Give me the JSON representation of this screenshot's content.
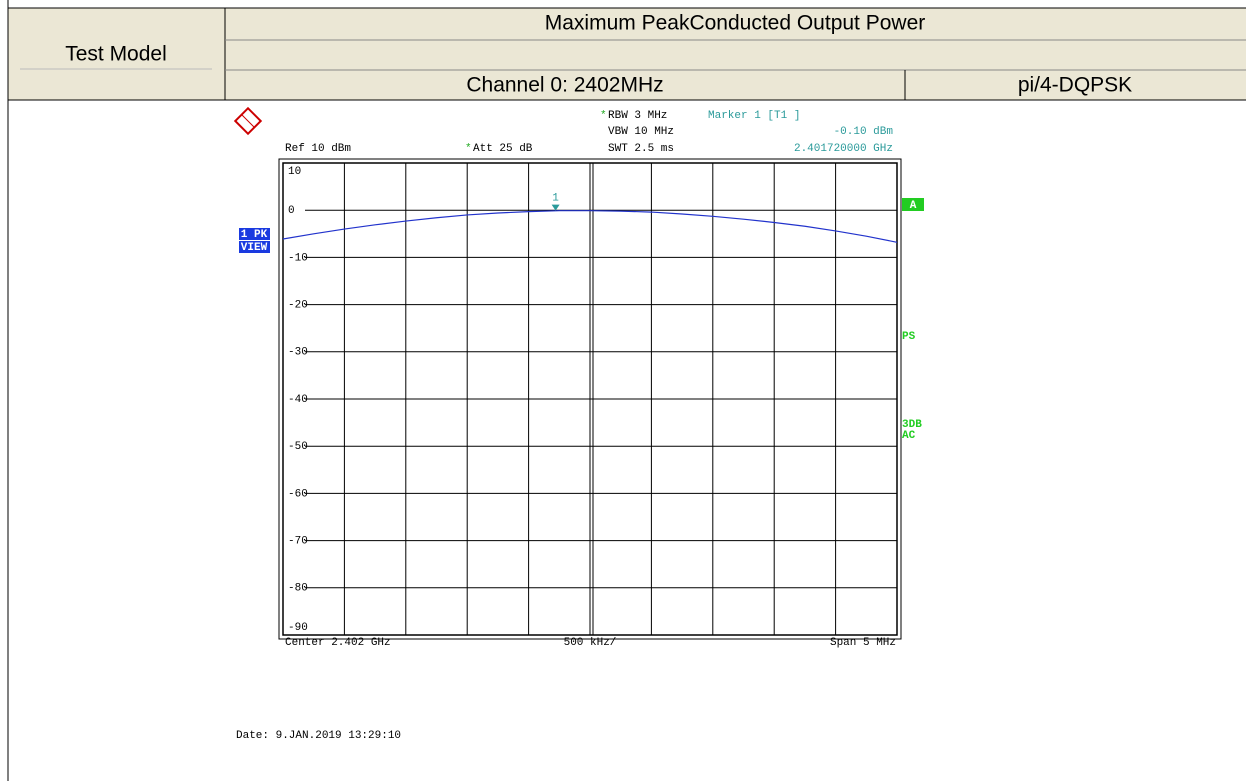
{
  "table": {
    "row_header": "Test Model",
    "title": "Maximum PeakConducted Output Power",
    "channel": "Channel 0: 2402MHz",
    "modulation": "pi/4-DQPSK"
  },
  "chart_data": {
    "type": "line",
    "ref": "Ref  10 dBm",
    "att_flag": "*",
    "att": "Att  25 dB",
    "rbw_flag": "*",
    "rbw": "RBW 3 MHz",
    "vbw": "VBW 10 MHz",
    "swt": "SWT 2.5 ms",
    "marker_title": "Marker 1 [T1 ]",
    "marker": {
      "label": "1",
      "value": -0.1,
      "value_label": "-0.10 dBm",
      "freq": 2401.72,
      "freq_label": "2.401720000 GHz"
    },
    "trace_tag": "1 PK",
    "view_tag": "VIEW",
    "side_a": "A",
    "side_ps": "PS",
    "side_3db": "3DB",
    "side_ac": "AC",
    "x_center": "Center 2.402 GHz",
    "x_div": "500 kHz/",
    "x_span": "Span 5 MHz",
    "date": "Date: 9.JAN.2019  13:29:10",
    "xlim": [
      2399.5,
      2404.5
    ],
    "ylim": [
      -90,
      10
    ],
    "yticks": [
      10,
      0,
      -10,
      -20,
      -30,
      -40,
      -50,
      -60,
      -70,
      -80,
      -90
    ],
    "series": [
      {
        "color": "#2233cc",
        "x": [
          2399.5,
          2399.75,
          2400,
          2400.25,
          2400.5,
          2400.75,
          2401,
          2401.25,
          2401.5,
          2401.75,
          2402,
          2402.25,
          2402.5,
          2402.75,
          2403,
          2403.25,
          2403.5,
          2403.75,
          2404,
          2404.25,
          2404.5
        ],
        "values": [
          -6.1,
          -5.0,
          -4.0,
          -3.1,
          -2.3,
          -1.6,
          -1.0,
          -0.6,
          -0.3,
          -0.1,
          -0.1,
          -0.2,
          -0.4,
          -0.8,
          -1.3,
          -1.9,
          -2.6,
          -3.4,
          -4.4,
          -5.5,
          -6.8
        ]
      }
    ]
  }
}
